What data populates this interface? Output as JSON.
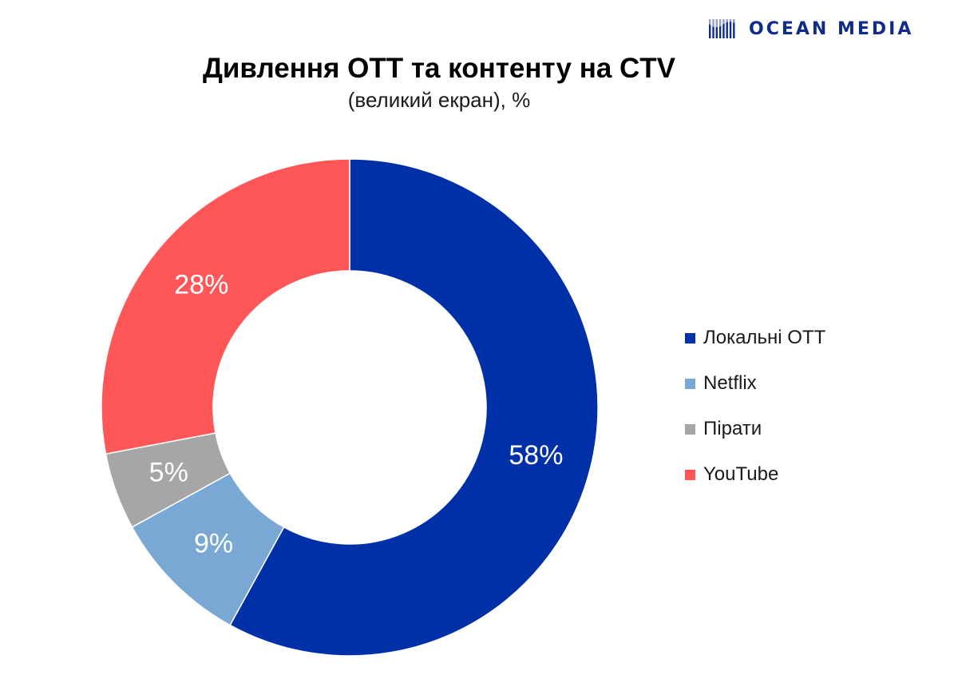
{
  "brand": {
    "name": "OCEAN MEDIA",
    "color": "#0f2c8c",
    "icon": "ocean-media-logo-icon"
  },
  "chart_data": {
    "type": "pie",
    "donut": true,
    "title": "Дивлення ОТТ та контенту на CTV",
    "subtitle": "(великий екран), %",
    "categories": [
      "Локальні ОТТ",
      "Netflix",
      "Пірати",
      "YouTube"
    ],
    "values": [
      58,
      9,
      5,
      28
    ],
    "data_labels": [
      "58%",
      "9%",
      "5%",
      "28%"
    ],
    "colors": [
      "#0030a8",
      "#79a8d4",
      "#a6a6a6",
      "#ff5757"
    ],
    "label_color": "#ffffff",
    "start_angle": "12 o'clock",
    "direction": "clockwise",
    "legend_placement": "right"
  }
}
